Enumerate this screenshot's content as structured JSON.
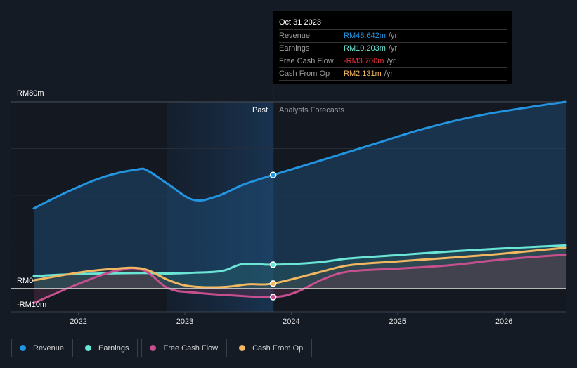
{
  "tooltip": {
    "date": "Oct 31 2023",
    "rows": [
      {
        "label": "Revenue",
        "value": "RM48.642m",
        "unit": "/yr",
        "color": "#2394df"
      },
      {
        "label": "Earnings",
        "value": "RM10.203m",
        "unit": "/yr",
        "color": "#6ae5d6"
      },
      {
        "label": "Free Cash Flow",
        "value": "-RM3.700m",
        "unit": "/yr",
        "color": "#e2323c"
      },
      {
        "label": "Cash From Op",
        "value": "RM2.131m",
        "unit": "/yr",
        "color": "#f3b661"
      }
    ]
  },
  "legend": [
    {
      "label": "Revenue",
      "color": "#2394df"
    },
    {
      "label": "Earnings",
      "color": "#6ae5d6"
    },
    {
      "label": "Free Cash Flow",
      "color": "#c6508e"
    },
    {
      "label": "Cash From Op",
      "color": "#f3b661"
    }
  ],
  "chart_data": {
    "type": "area",
    "title": "",
    "xlabel": "",
    "ylabel": "",
    "y_tick_labels": [
      "RM80m",
      "RM0",
      "-RM10m"
    ],
    "ylim": [
      -10,
      80
    ],
    "xlim": [
      2021.58,
      2026.58
    ],
    "x_ticks": [
      2022,
      2023,
      2024,
      2025,
      2026
    ],
    "x_tick_labels": [
      "2022",
      "2023",
      "2024",
      "2025",
      "2026"
    ],
    "grid": true,
    "legend_position": "bottom-left",
    "regions": {
      "past_label": "Past",
      "forecast_label": "Analysts Forecasts",
      "divider_x": 2023.83,
      "highlight_start_x": 2022.83
    },
    "series": [
      {
        "name": "Revenue",
        "color": "#2394df",
        "x": [
          2021.58,
          2021.9,
          2022.25,
          2022.55,
          2022.65,
          2022.85,
          2023.08,
          2023.3,
          2023.55,
          2023.83,
          2024.25,
          2024.75,
          2025.25,
          2025.75,
          2026.25,
          2026.58
        ],
        "y": [
          34.3,
          41.5,
          48.0,
          51.0,
          50.5,
          44.5,
          38.0,
          39.5,
          44.5,
          48.64,
          54.5,
          61.5,
          68.5,
          74.0,
          77.8,
          80.0
        ]
      },
      {
        "name": "Earnings",
        "color": "#6ae5d6",
        "x": [
          2021.58,
          2022.0,
          2022.5,
          2022.65,
          2022.85,
          2023.1,
          2023.35,
          2023.55,
          2023.83,
          2024.25,
          2024.55,
          2025.0,
          2025.5,
          2026.0,
          2026.58
        ],
        "y": [
          5.3,
          6.2,
          6.6,
          6.6,
          6.4,
          6.8,
          7.5,
          10.5,
          10.2,
          11.2,
          12.9,
          14.3,
          15.9,
          17.2,
          18.5
        ]
      },
      {
        "name": "Free Cash Flow",
        "color": "#c6508e",
        "x": [
          2021.58,
          2022.0,
          2022.35,
          2022.6,
          2022.85,
          2023.1,
          2023.45,
          2023.83,
          2024.05,
          2024.3,
          2024.55,
          2025.0,
          2025.5,
          2026.0,
          2026.58
        ],
        "y": [
          -6.3,
          2.0,
          7.5,
          8.0,
          0.0,
          -1.8,
          -3.0,
          -3.7,
          -1.5,
          4.0,
          7.3,
          8.5,
          10.0,
          12.5,
          14.5
        ]
      },
      {
        "name": "Cash From Op",
        "color": "#f3b661",
        "x": [
          2021.58,
          2022.0,
          2022.3,
          2022.6,
          2022.85,
          2023.05,
          2023.35,
          2023.6,
          2023.83,
          2024.25,
          2024.55,
          2025.0,
          2025.5,
          2026.0,
          2026.58
        ],
        "y": [
          3.5,
          6.8,
          8.3,
          8.5,
          3.5,
          1.0,
          0.6,
          1.8,
          2.13,
          6.8,
          10.0,
          11.6,
          13.2,
          15.0,
          17.5
        ]
      }
    ]
  }
}
